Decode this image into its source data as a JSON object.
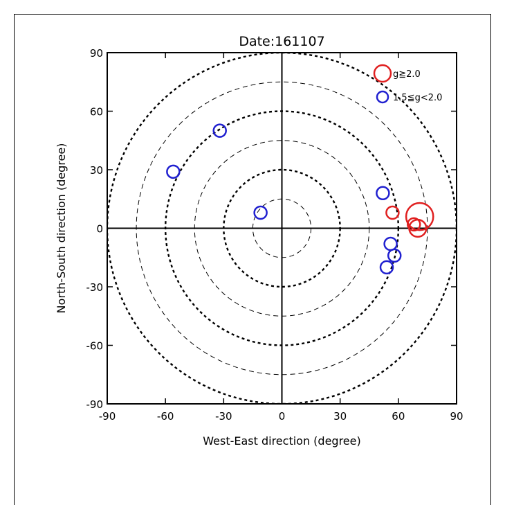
{
  "chart_data": {
    "type": "scatter",
    "title": "Date:161107",
    "xlabel": "West-East direction (degree)",
    "ylabel": "North-South direction (degree)",
    "xlim": [
      -90,
      90
    ],
    "ylim": [
      -90,
      90
    ],
    "xticks": [
      "-90",
      "-60",
      "-30",
      "0",
      "30",
      "60",
      "90"
    ],
    "yticks": [
      "90",
      "60",
      "30",
      "0",
      "-30",
      "-60",
      "-90"
    ],
    "rings": [
      {
        "radius": 15,
        "style": "thin-dashed"
      },
      {
        "radius": 30,
        "style": "thick-dotted"
      },
      {
        "radius": 45,
        "style": "thin-dashed"
      },
      {
        "radius": 60,
        "style": "thick-dotted"
      },
      {
        "radius": 75,
        "style": "thin-dashed"
      },
      {
        "radius": 90,
        "style": "thick-dotted"
      }
    ],
    "legend": {
      "placement": "top-right",
      "items": [
        {
          "label": "g≧2.0",
          "color": "#e02020"
        },
        {
          "label": "1.5≦g<2.0",
          "color": "#2020d0"
        }
      ]
    },
    "series": [
      {
        "name": "g≧2.0",
        "color": "#e02020",
        "points": [
          {
            "x": 57,
            "y": 8,
            "g": 2.1
          },
          {
            "x": 71,
            "y": 6,
            "g": 2.7
          },
          {
            "x": 70,
            "y": 0,
            "g": 2.3
          },
          {
            "x": 68,
            "y": 2,
            "g": 2.1
          }
        ]
      },
      {
        "name": "1.5≦g<2.0",
        "color": "#2020d0",
        "points": [
          {
            "x": -32,
            "y": 50
          },
          {
            "x": -56,
            "y": 29
          },
          {
            "x": -11,
            "y": 8
          },
          {
            "x": 52,
            "y": 18
          },
          {
            "x": 56,
            "y": -8
          },
          {
            "x": 58,
            "y": -14
          },
          {
            "x": 54,
            "y": -20
          }
        ]
      }
    ]
  }
}
